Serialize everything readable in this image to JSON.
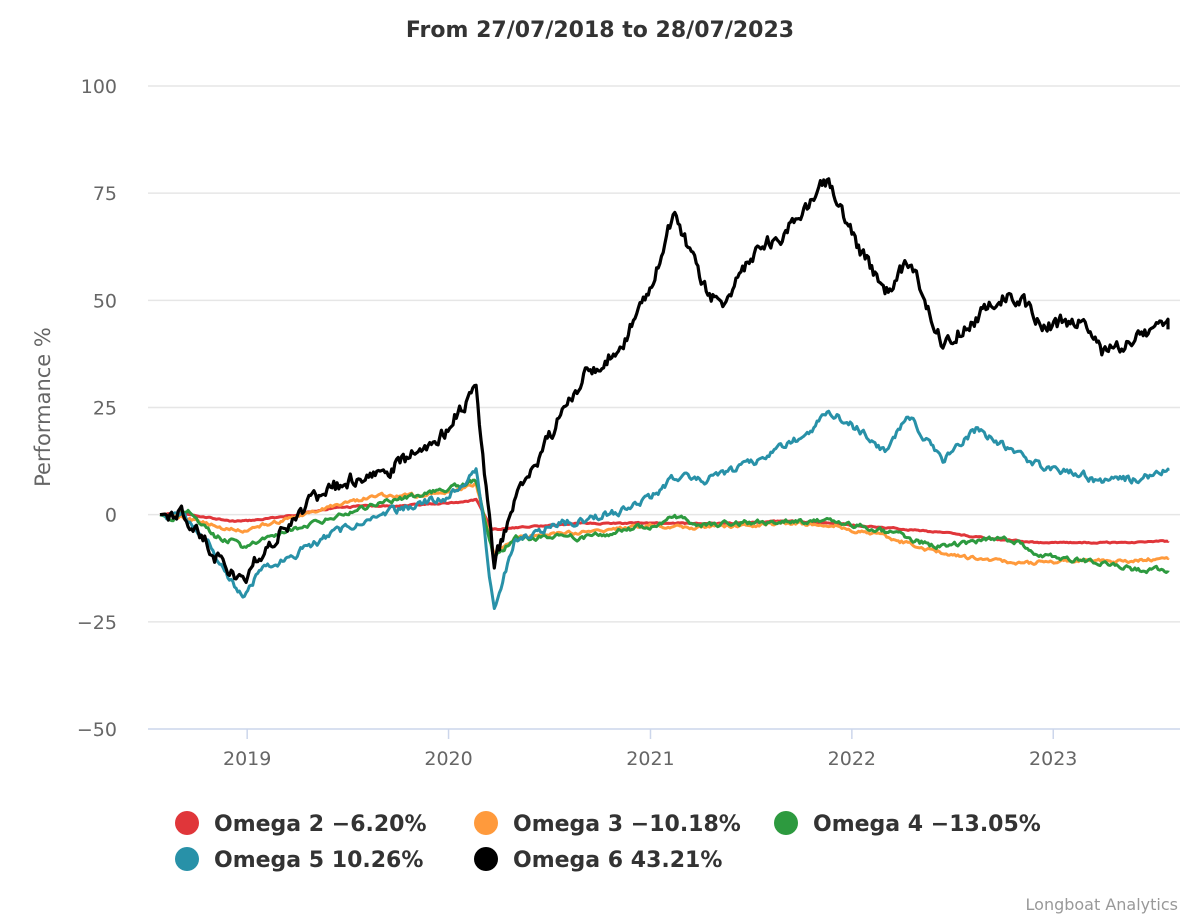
{
  "chart_data": {
    "type": "line",
    "title": "From 27/07/2018 to 28/07/2023",
    "ylabel": "Performance %",
    "xlabel": "",
    "x_range": [
      "2018-07-27",
      "2023-07-28"
    ],
    "ylim": [
      -50,
      100
    ],
    "y_ticks": [
      100,
      75,
      50,
      25,
      0,
      -25,
      -50
    ],
    "y_tick_labels": [
      "100",
      "75",
      "50",
      "25",
      "0",
      "−25",
      "−50"
    ],
    "x_ticks": [
      {
        "date": "2019-01-01",
        "label": "2019"
      },
      {
        "date": "2020-01-01",
        "label": "2020"
      },
      {
        "date": "2021-01-01",
        "label": "2021"
      },
      {
        "date": "2022-01-01",
        "label": "2022"
      },
      {
        "date": "2023-01-01",
        "label": "2023"
      }
    ],
    "grid": "horizontal",
    "legend_position": "bottom",
    "credit": "Longboat Analytics",
    "series": [
      {
        "name": "Omega 2",
        "legend": "Omega 2 −6.20%",
        "color": "#e0363a",
        "points": [
          [
            "2018-07-27",
            0
          ],
          [
            "2018-09-01",
            0.5
          ],
          [
            "2018-10-15",
            -0.5
          ],
          [
            "2018-12-01",
            -1.5
          ],
          [
            "2019-01-01",
            -1.5
          ],
          [
            "2019-02-01",
            -1.0
          ],
          [
            "2019-04-01",
            0.0
          ],
          [
            "2019-06-01",
            1.5
          ],
          [
            "2019-08-01",
            2.0
          ],
          [
            "2019-10-01",
            2.0
          ],
          [
            "2019-12-01",
            2.5
          ],
          [
            "2020-02-01",
            3.0
          ],
          [
            "2020-02-20",
            3.5
          ],
          [
            "2020-03-20",
            -3.5
          ],
          [
            "2020-05-01",
            -3.0
          ],
          [
            "2020-07-01",
            -2.5
          ],
          [
            "2020-09-01",
            -2.0
          ],
          [
            "2020-11-01",
            -2.0
          ],
          [
            "2021-01-01",
            -2.0
          ],
          [
            "2021-03-01",
            -2.0
          ],
          [
            "2021-06-01",
            -2.0
          ],
          [
            "2021-09-01",
            -1.5
          ],
          [
            "2021-12-01",
            -2.0
          ],
          [
            "2022-01-01",
            -2.5
          ],
          [
            "2022-03-01",
            -3.0
          ],
          [
            "2022-06-01",
            -4.0
          ],
          [
            "2022-09-01",
            -5.5
          ],
          [
            "2022-12-01",
            -6.5
          ],
          [
            "2023-03-01",
            -6.5
          ],
          [
            "2023-05-01",
            -6.5
          ],
          [
            "2023-07-28",
            -6.2
          ]
        ]
      },
      {
        "name": "Omega 3",
        "legend": "Omega 3 −10.18%",
        "color": "#ff9a3c",
        "points": [
          [
            "2018-07-27",
            0
          ],
          [
            "2018-09-01",
            -0.5
          ],
          [
            "2018-10-15",
            -2.0
          ],
          [
            "2018-11-20",
            -3.0
          ],
          [
            "2018-12-25",
            -4.0
          ],
          [
            "2019-01-15",
            -3.0
          ],
          [
            "2019-03-01",
            -1.5
          ],
          [
            "2019-05-01",
            0.5
          ],
          [
            "2019-07-01",
            3.0
          ],
          [
            "2019-09-01",
            4.5
          ],
          [
            "2019-11-01",
            4.5
          ],
          [
            "2020-01-01",
            5.5
          ],
          [
            "2020-02-20",
            7.0
          ],
          [
            "2020-03-23",
            -9.0
          ],
          [
            "2020-05-01",
            -5.5
          ],
          [
            "2020-07-01",
            -4.5
          ],
          [
            "2020-09-01",
            -4.0
          ],
          [
            "2020-11-01",
            -3.5
          ],
          [
            "2021-01-01",
            -2.5
          ],
          [
            "2021-03-01",
            -3.0
          ],
          [
            "2021-06-01",
            -2.5
          ],
          [
            "2021-09-01",
            -2.0
          ],
          [
            "2021-12-01",
            -2.5
          ],
          [
            "2022-01-01",
            -3.5
          ],
          [
            "2022-03-01",
            -5.0
          ],
          [
            "2022-05-01",
            -7.5
          ],
          [
            "2022-07-01",
            -9.5
          ],
          [
            "2022-09-01",
            -10.5
          ],
          [
            "2022-11-01",
            -11.5
          ],
          [
            "2023-01-01",
            -11.0
          ],
          [
            "2023-03-01",
            -10.5
          ],
          [
            "2023-05-01",
            -11.0
          ],
          [
            "2023-07-28",
            -10.18
          ]
        ]
      },
      {
        "name": "Omega 4",
        "legend": "Omega 4 −13.05%",
        "color": "#2d9a3f",
        "points": [
          [
            "2018-07-27",
            0
          ],
          [
            "2018-08-20",
            -1.0
          ],
          [
            "2018-09-15",
            0.5
          ],
          [
            "2018-10-10",
            -2.5
          ],
          [
            "2018-11-01",
            -5.0
          ],
          [
            "2018-12-01",
            -6.0
          ],
          [
            "2018-12-25",
            -8.0
          ],
          [
            "2019-01-20",
            -6.0
          ],
          [
            "2019-03-01",
            -4.0
          ],
          [
            "2019-05-01",
            -2.0
          ],
          [
            "2019-07-01",
            0.5
          ],
          [
            "2019-09-01",
            3.0
          ],
          [
            "2019-11-01",
            4.5
          ],
          [
            "2020-01-01",
            6.0
          ],
          [
            "2020-02-20",
            8.0
          ],
          [
            "2020-03-23",
            -10.0
          ],
          [
            "2020-05-01",
            -5.5
          ],
          [
            "2020-07-01",
            -5.0
          ],
          [
            "2020-09-01",
            -5.5
          ],
          [
            "2020-11-01",
            -4.0
          ],
          [
            "2021-01-01",
            -2.5
          ],
          [
            "2021-02-15",
            -0.5
          ],
          [
            "2021-04-01",
            -2.5
          ],
          [
            "2021-06-01",
            -2.0
          ],
          [
            "2021-09-01",
            -1.5
          ],
          [
            "2021-12-01",
            -1.5
          ],
          [
            "2022-02-01",
            -3.0
          ],
          [
            "2022-04-01",
            -5.0
          ],
          [
            "2022-06-01",
            -7.5
          ],
          [
            "2022-08-01",
            -6.5
          ],
          [
            "2022-10-01",
            -5.0
          ],
          [
            "2022-12-01",
            -9.0
          ],
          [
            "2023-02-01",
            -10.5
          ],
          [
            "2023-04-01",
            -11.5
          ],
          [
            "2023-06-01",
            -13.0
          ],
          [
            "2023-07-28",
            -13.05
          ]
        ]
      },
      {
        "name": "Omega 5",
        "legend": "Omega 5 10.26%",
        "color": "#2891a8",
        "points": [
          [
            "2018-07-27",
            0
          ],
          [
            "2018-09-01",
            -0.5
          ],
          [
            "2018-10-10",
            -4.0
          ],
          [
            "2018-11-10",
            -11.0
          ],
          [
            "2018-12-25",
            -19.0
          ],
          [
            "2019-01-20",
            -14.0
          ],
          [
            "2019-03-01",
            -11.0
          ],
          [
            "2019-05-01",
            -7.0
          ],
          [
            "2019-07-01",
            -3.0
          ],
          [
            "2019-09-01",
            0.0
          ],
          [
            "2019-11-01",
            2.5
          ],
          [
            "2020-01-01",
            4.5
          ],
          [
            "2020-02-20",
            11.0
          ],
          [
            "2020-03-23",
            -22.0
          ],
          [
            "2020-05-01",
            -6.0
          ],
          [
            "2020-07-01",
            -3.0
          ],
          [
            "2020-09-01",
            -1.0
          ],
          [
            "2020-11-01",
            0.5
          ],
          [
            "2021-01-01",
            4.0
          ],
          [
            "2021-02-15",
            9.0
          ],
          [
            "2021-04-01",
            8.0
          ],
          [
            "2021-06-01",
            10.0
          ],
          [
            "2021-08-01",
            14.0
          ],
          [
            "2021-10-01",
            18.0
          ],
          [
            "2021-11-20",
            24.0
          ],
          [
            "2022-01-01",
            21.0
          ],
          [
            "2022-03-01",
            15.0
          ],
          [
            "2022-04-15",
            23.0
          ],
          [
            "2022-06-15",
            13.0
          ],
          [
            "2022-08-15",
            20.0
          ],
          [
            "2022-10-15",
            15.0
          ],
          [
            "2022-12-15",
            11.0
          ],
          [
            "2023-02-15",
            10.0
          ],
          [
            "2023-04-01",
            7.5
          ],
          [
            "2023-06-01",
            8.5
          ],
          [
            "2023-07-28",
            10.26
          ]
        ]
      },
      {
        "name": "Omega 6",
        "legend": "Omega 6 43.21%",
        "color": "#000000",
        "points": [
          [
            "2018-07-27",
            0
          ],
          [
            "2018-09-01",
            0.5
          ],
          [
            "2018-10-10",
            -5.0
          ],
          [
            "2018-11-10",
            -10.0
          ],
          [
            "2018-12-25",
            -17.0
          ],
          [
            "2019-01-20",
            -10.0
          ],
          [
            "2019-03-01",
            -4.0
          ],
          [
            "2019-05-01",
            3.0
          ],
          [
            "2019-07-01",
            8.0
          ],
          [
            "2019-09-01",
            10.0
          ],
          [
            "2019-11-01",
            14.0
          ],
          [
            "2020-01-01",
            20.0
          ],
          [
            "2020-02-20",
            31.0
          ],
          [
            "2020-03-23",
            -12.0
          ],
          [
            "2020-05-01",
            4.0
          ],
          [
            "2020-07-01",
            18.0
          ],
          [
            "2020-09-01",
            32.0
          ],
          [
            "2020-11-01",
            38.0
          ],
          [
            "2021-01-01",
            52.0
          ],
          [
            "2021-02-15",
            71.0
          ],
          [
            "2021-04-01",
            54.0
          ],
          [
            "2021-05-15",
            48.0
          ],
          [
            "2021-07-01",
            60.0
          ],
          [
            "2021-09-01",
            66.0
          ],
          [
            "2021-11-20",
            78.0
          ],
          [
            "2022-01-01",
            65.0
          ],
          [
            "2022-03-01",
            52.0
          ],
          [
            "2022-04-15",
            59.0
          ],
          [
            "2022-06-15",
            40.0
          ],
          [
            "2022-08-15",
            46.0
          ],
          [
            "2022-10-15",
            53.0
          ],
          [
            "2022-12-15",
            44.0
          ],
          [
            "2023-02-15",
            45.0
          ],
          [
            "2023-04-01",
            37.0
          ],
          [
            "2023-06-01",
            41.0
          ],
          [
            "2023-07-28",
            43.21
          ]
        ]
      }
    ]
  }
}
